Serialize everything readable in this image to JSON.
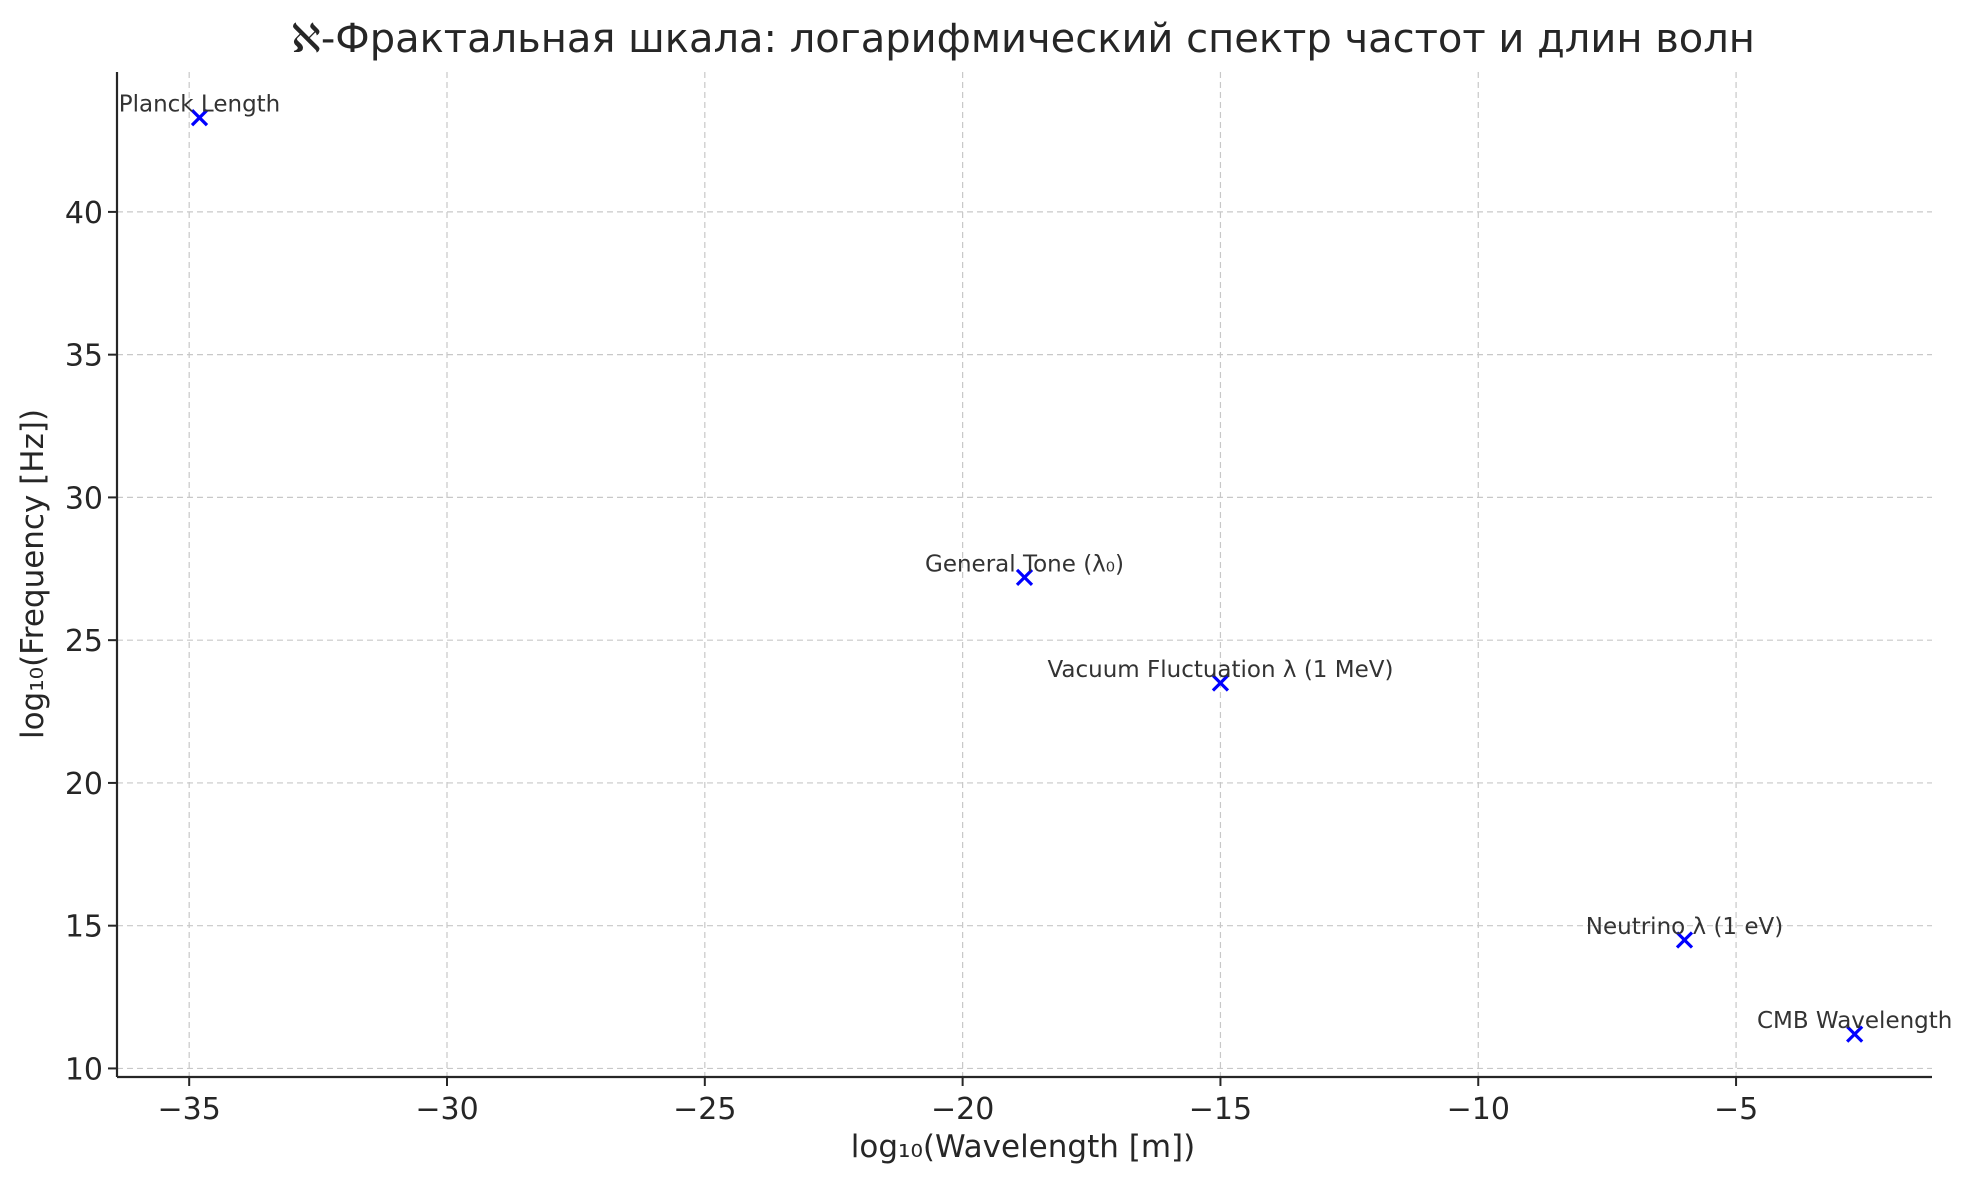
{
  "chart_data": {
    "type": "scatter",
    "title": "ℵ-Фрактальная шкала: логарифмический спектр частот и длин волн",
    "xlabel": "log₁₀(Wavelength [m])",
    "ylabel": "log₁₀(Frequency [Hz])",
    "xlim": [
      -36.4,
      -1.2
    ],
    "ylim": [
      9.7,
      44.9
    ],
    "xticks": [
      -35,
      -30,
      -25,
      -20,
      -15,
      -10,
      -5
    ],
    "yticks": [
      10,
      15,
      20,
      25,
      30,
      35,
      40
    ],
    "xtick_labels": [
      "−35",
      "−30",
      "−25",
      "−20",
      "−15",
      "−10",
      "−5"
    ],
    "ytick_labels": [
      "10",
      "15",
      "20",
      "25",
      "30",
      "35",
      "40"
    ],
    "grid": true,
    "marker": "x",
    "marker_color": "#0000ff",
    "points": [
      {
        "label": "Planck Length",
        "x": -34.8,
        "y": 43.3
      },
      {
        "label": "General Tone (λ₀)",
        "x": -18.8,
        "y": 27.2
      },
      {
        "label": "Vacuum Fluctuation λ (1 MeV)",
        "x": -15.0,
        "y": 23.5
      },
      {
        "label": "Neutrino λ (1 eV)",
        "x": -6.0,
        "y": 14.5
      },
      {
        "label": "CMB Wavelength",
        "x": -2.7,
        "y": 11.2
      }
    ]
  }
}
